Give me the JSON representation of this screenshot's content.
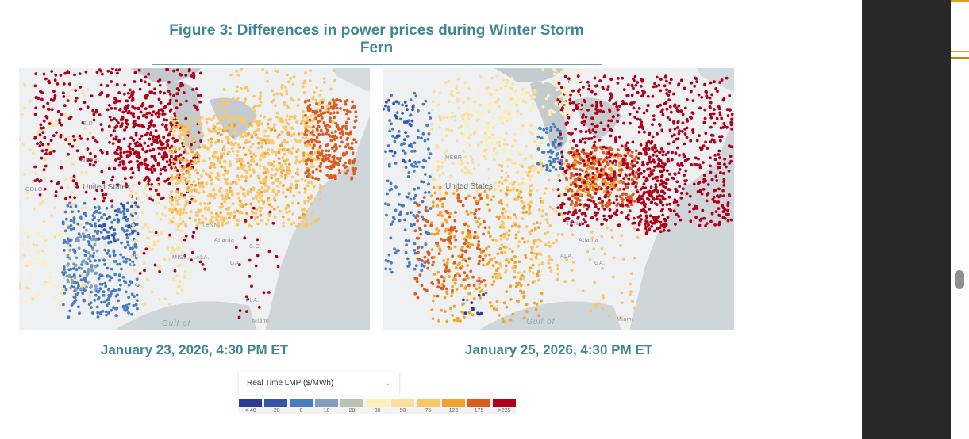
{
  "title": "Figure 3: Differences in power prices during Winter Storm Fern",
  "maps": [
    {
      "caption": "January 23, 2026, 4:30 PM ET"
    },
    {
      "caption": "January 25, 2026, 4:30 PM ET"
    }
  ],
  "map_labels": {
    "country": "United States",
    "tenn": "TENN.",
    "atlanta": "Atlanta",
    "miss": "MISS.",
    "ala": "ALA.",
    "ga": "GA.",
    "sc": "S.C.",
    "gulf": "Gulf of",
    "miami": "Miami",
    "nebr": "NEBR.",
    "sd": "S.D.",
    "colo": "COLO.",
    "fla": "FLA."
  },
  "legend": {
    "dropdown_label": "Real Time LMP ($/MWh)",
    "bins": [
      {
        "label": "<-40",
        "color": "#2b3a93"
      },
      {
        "label": "-20",
        "color": "#3556a8"
      },
      {
        "label": "0",
        "color": "#4a7cc0"
      },
      {
        "label": "10",
        "color": "#7f9fbf"
      },
      {
        "label": "20",
        "color": "#b8c4b0"
      },
      {
        "label": "30",
        "color": "#fbf0b5"
      },
      {
        "label": "50",
        "color": "#fbe09a"
      },
      {
        "label": "75",
        "color": "#f9c768"
      },
      {
        "label": "125",
        "color": "#f3a22c"
      },
      {
        "label": "175",
        "color": "#dc5d21"
      },
      {
        "label": ">225",
        "color": "#b0001c"
      }
    ]
  }
}
